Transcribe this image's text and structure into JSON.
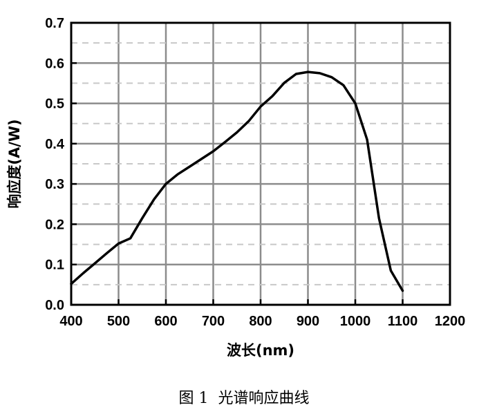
{
  "chart_data": {
    "type": "line",
    "xlabel": "波长(nm)",
    "ylabel": "响应度(A/W)",
    "xlim": [
      400,
      1200
    ],
    "ylim": [
      0,
      0.7
    ],
    "xticks": [
      "400",
      "500",
      "600",
      "700",
      "800",
      "900",
      "1000",
      "1100",
      "1200"
    ],
    "yticks": [
      "0.0",
      "0.1",
      "0.2",
      "0.3",
      "0.4",
      "0.5",
      "0.6",
      "0.7"
    ],
    "grid": {
      "major": true,
      "minor_y_dashed": true
    },
    "series": [
      {
        "color": "#000000",
        "x": [
          400,
          425,
          450,
          475,
          500,
          525,
          550,
          575,
          600,
          625,
          650,
          675,
          700,
          725,
          750,
          775,
          800,
          825,
          850,
          875,
          900,
          925,
          950,
          975,
          1000,
          1025,
          1050,
          1075,
          1100
        ],
        "y": [
          0.052,
          0.078,
          0.103,
          0.128,
          0.152,
          0.165,
          0.215,
          0.262,
          0.3,
          0.324,
          0.343,
          0.362,
          0.381,
          0.404,
          0.428,
          0.456,
          0.492,
          0.518,
          0.551,
          0.573,
          0.578,
          0.575,
          0.565,
          0.545,
          0.5,
          0.41,
          0.215,
          0.085,
          0.035
        ]
      }
    ]
  },
  "caption": "图 1  光谱响应曲线",
  "colors": {
    "grid": "#8c8c8c",
    "grid_minor": "#c8c8c8",
    "axis": "#000000",
    "line": "#000000"
  }
}
